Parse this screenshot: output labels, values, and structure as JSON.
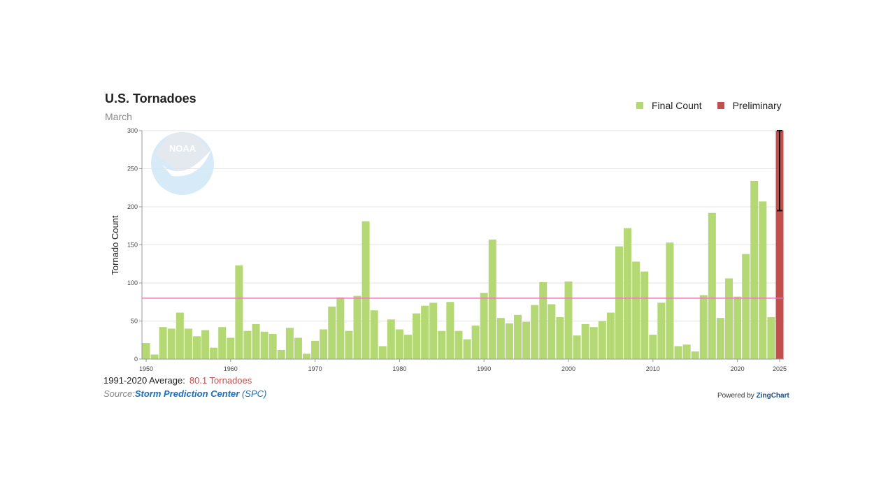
{
  "chart_data": {
    "type": "bar",
    "title": "U.S. Tornadoes",
    "subtitle": "March",
    "ylabel": "Tornado Count",
    "xlabel": "",
    "ylim": [
      0,
      300
    ],
    "yticks": [
      "0",
      "50",
      "100",
      "150",
      "200",
      "250",
      "300"
    ],
    "xticks": [
      "1950",
      "1960",
      "1970",
      "1980",
      "1990",
      "2000",
      "2010",
      "2020",
      "2025"
    ],
    "grid": true,
    "legend_position": "top-right",
    "series": [
      {
        "name": "Final Count",
        "color": "#b4d874",
        "x": [
          1950,
          1951,
          1952,
          1953,
          1954,
          1955,
          1956,
          1957,
          1958,
          1959,
          1960,
          1961,
          1962,
          1963,
          1964,
          1965,
          1966,
          1967,
          1968,
          1969,
          1970,
          1971,
          1972,
          1973,
          1974,
          1975,
          1976,
          1977,
          1978,
          1979,
          1980,
          1981,
          1982,
          1983,
          1984,
          1985,
          1986,
          1987,
          1988,
          1989,
          1990,
          1991,
          1992,
          1993,
          1994,
          1995,
          1996,
          1997,
          1998,
          1999,
          2000,
          2001,
          2002,
          2003,
          2004,
          2005,
          2006,
          2007,
          2008,
          2009,
          2010,
          2011,
          2012,
          2013,
          2014,
          2015,
          2016,
          2017,
          2018,
          2019,
          2020,
          2021,
          2022,
          2023,
          2024
        ],
        "values": [
          21,
          6,
          42,
          40,
          61,
          40,
          30,
          38,
          15,
          42,
          28,
          123,
          37,
          46,
          36,
          33,
          12,
          41,
          28,
          7,
          24,
          39,
          69,
          81,
          37,
          83,
          181,
          64,
          17,
          52,
          39,
          32,
          60,
          70,
          74,
          37,
          75,
          37,
          26,
          44,
          87,
          157,
          54,
          47,
          58,
          49,
          71,
          101,
          72,
          55,
          102,
          31,
          46,
          42,
          50,
          61,
          148,
          172,
          128,
          115,
          32,
          74,
          153,
          17,
          19,
          10,
          84,
          192,
          54,
          106,
          82,
          138,
          234,
          207,
          55
        ]
      },
      {
        "name": "Preliminary",
        "color": "#c0504d",
        "x": [
          2025
        ],
        "values": [
          300
        ],
        "error_range": [
          195,
          300
        ]
      }
    ],
    "reference_line": {
      "value": 80.1,
      "color": "#e377b0"
    }
  },
  "footer": {
    "average_label": "1991-2020 Average:",
    "average_value": "80.1 Tornadoes",
    "source_label": "Source:",
    "source_link": "Storm Prediction Center",
    "source_abbr": "(SPC)",
    "powered_by": "Powered by",
    "powered_brand": "ZingChart"
  },
  "logo": {
    "text": "NOAA"
  }
}
